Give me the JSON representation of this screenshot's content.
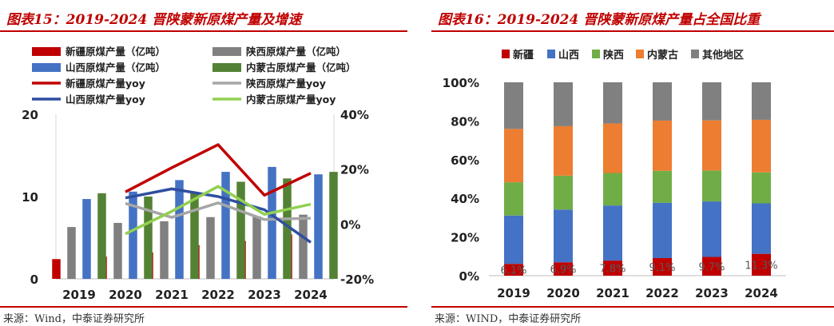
{
  "left": {
    "title": "图表15：2019-2024 晋陕蒙新原煤产量及增速",
    "source": "来源：Wind，中泰证券研究所"
  },
  "right": {
    "title": "图表16：2019-2024 晋陕蒙新原煤产量占全国比重",
    "source": "来源：WIND，中泰证券研究所"
  },
  "chart_data": [
    {
      "type": "bar",
      "title": "2019-2024 晋陕蒙新原煤产量及增速",
      "categories": [
        "2019",
        "2020",
        "2021",
        "2022",
        "2023",
        "2024"
      ],
      "ylim": [
        0,
        20
      ],
      "yticks": [
        0,
        10,
        20
      ],
      "y2lim": [
        -20,
        40
      ],
      "y2ticks": [
        "-20%",
        "0%",
        "20%",
        "40%"
      ],
      "series": [
        {
          "name": "新疆原煤产量（亿吨）",
          "kind": "bar",
          "color": "#c00000",
          "values": [
            2.4,
            2.7,
            3.2,
            4.1,
            4.6,
            5.4
          ]
        },
        {
          "name": "陕西原煤产量（亿吨）",
          "kind": "bar",
          "color": "#808080",
          "values": [
            6.3,
            6.8,
            7.0,
            7.5,
            7.6,
            7.8
          ]
        },
        {
          "name": "山西原煤产量（亿吨）",
          "kind": "bar",
          "color": "#4472c4",
          "values": [
            9.7,
            10.6,
            12.0,
            13.0,
            13.6,
            12.7
          ]
        },
        {
          "name": "内蒙古原煤产量（亿吨）",
          "kind": "bar",
          "color": "#548235",
          "values": [
            10.4,
            10.0,
            10.5,
            11.8,
            12.2,
            13.0
          ]
        },
        {
          "name": "新疆原煤产量yoy",
          "kind": "line",
          "color": "#c00000",
          "values": [
            null,
            11.7,
            20.5,
            28.9,
            10.5,
            18.5
          ]
        },
        {
          "name": "陕西原煤产量yoy",
          "kind": "line",
          "color": "#a6a6a6",
          "values": [
            null,
            7.5,
            2.4,
            7.7,
            1.6,
            2.1
          ]
        },
        {
          "name": "山西原煤产量yoy",
          "kind": "line",
          "color": "#2f4f9f",
          "values": [
            null,
            9.5,
            12.8,
            10.0,
            5.2,
            -6.7
          ]
        },
        {
          "name": "内蒙古原煤产量yoy",
          "kind": "line",
          "color": "#92d050",
          "values": [
            null,
            -3.6,
            4.6,
            13.7,
            3.5,
            7.2
          ]
        }
      ]
    },
    {
      "type": "bar",
      "stacked": true,
      "title": "2019-2024 晋陕蒙新原煤产量占全国比重",
      "categories": [
        "2019",
        "2020",
        "2021",
        "2022",
        "2023",
        "2024"
      ],
      "ylim": [
        0,
        100
      ],
      "yticks": [
        "0%",
        "20%",
        "40%",
        "60%",
        "80%",
        "100%"
      ],
      "series": [
        {
          "name": "新疆",
          "color": "#c00000",
          "values": [
            6.1,
            6.9,
            7.8,
            9.1,
            9.7,
            11.3
          ],
          "labels": [
            "6.1%",
            "6.9%",
            "7.8%",
            "9.1%",
            "9.7%",
            "11.3%"
          ]
        },
        {
          "name": "山西",
          "color": "#4472c4",
          "values": [
            25.0,
            27.3,
            28.5,
            28.6,
            28.7,
            26.1
          ]
        },
        {
          "name": "陕西",
          "color": "#70ad47",
          "values": [
            17.2,
            17.5,
            16.8,
            16.5,
            16.0,
            16.0
          ]
        },
        {
          "name": "内蒙古",
          "color": "#ed7d31",
          "values": [
            27.6,
            25.6,
            25.6,
            26.0,
            25.9,
            27.2
          ]
        },
        {
          "name": "其他地区",
          "color": "#808080",
          "values": [
            24.1,
            22.7,
            21.3,
            19.8,
            19.7,
            19.4
          ]
        }
      ]
    }
  ]
}
